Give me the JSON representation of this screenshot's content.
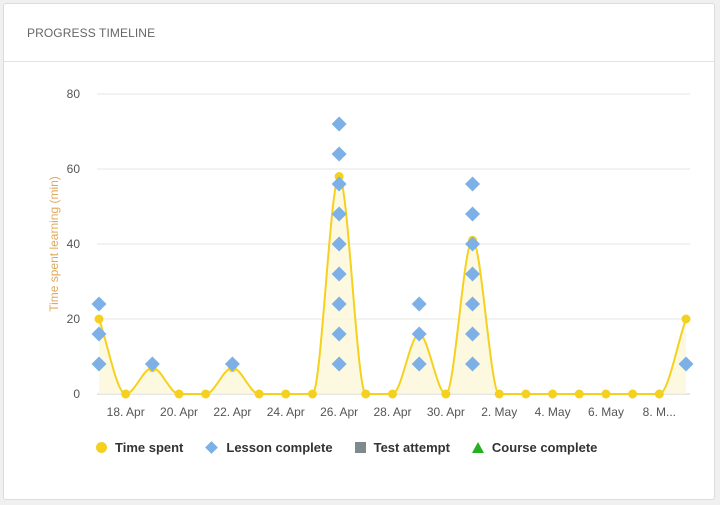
{
  "card": {
    "title": "PROGRESS TIMELINE"
  },
  "colors": {
    "time_spent": "#f5d11f",
    "lesson": "#7cb0e6",
    "test": "#7f8a8f",
    "course": "#25b021",
    "ylabel": "#e0a85a",
    "grid": "#e6e6e6"
  },
  "chart_data": {
    "type": "line",
    "title": "",
    "ylabel": "Time spent learning (min)",
    "xlabel": "",
    "ylim": [
      0,
      80
    ],
    "yticks": [
      0,
      20,
      40,
      60,
      80
    ],
    "x": [
      "17. Apr",
      "18. Apr",
      "19. Apr",
      "20. Apr",
      "21. Apr",
      "22. Apr",
      "23. Apr",
      "24. Apr",
      "25. Apr",
      "26. Apr",
      "27. Apr",
      "28. Apr",
      "29. Apr",
      "30. Apr",
      "1. May",
      "2. May",
      "3. May",
      "4. May",
      "5. May",
      "6. May",
      "7. May",
      "8. May",
      "9. May"
    ],
    "xtick_labels": [
      "18. Apr",
      "20. Apr",
      "22. Apr",
      "24. Apr",
      "26. Apr",
      "28. Apr",
      "30. Apr",
      "2. May",
      "4. May",
      "6. May",
      "8. M..."
    ],
    "series": [
      {
        "name": "Time spent",
        "marker": "circle",
        "values": [
          20,
          0,
          7,
          0,
          0,
          7,
          0,
          0,
          0,
          58,
          0,
          0,
          16,
          0,
          41,
          0,
          0,
          0,
          0,
          0,
          0,
          0,
          20
        ]
      },
      {
        "name": "Lesson complete",
        "marker": "diamond",
        "points": [
          [
            "17. Apr",
            8
          ],
          [
            "17. Apr",
            16
          ],
          [
            "17. Apr",
            24
          ],
          [
            "19. Apr",
            8
          ],
          [
            "22. Apr",
            8
          ],
          [
            "26. Apr",
            8
          ],
          [
            "26. Apr",
            16
          ],
          [
            "26. Apr",
            24
          ],
          [
            "26. Apr",
            32
          ],
          [
            "26. Apr",
            40
          ],
          [
            "26. Apr",
            48
          ],
          [
            "26. Apr",
            56
          ],
          [
            "26. Apr",
            64
          ],
          [
            "26. Apr",
            72
          ],
          [
            "29. Apr",
            8
          ],
          [
            "29. Apr",
            16
          ],
          [
            "29. Apr",
            24
          ],
          [
            "1. May",
            8
          ],
          [
            "1. May",
            16
          ],
          [
            "1. May",
            24
          ],
          [
            "1. May",
            32
          ],
          [
            "1. May",
            40
          ],
          [
            "1. May",
            48
          ],
          [
            "1. May",
            56
          ],
          [
            "9. May",
            8
          ]
        ]
      },
      {
        "name": "Test attempt",
        "marker": "square",
        "points": []
      },
      {
        "name": "Course complete",
        "marker": "triangle",
        "points": []
      }
    ],
    "legend": "bottom",
    "grid": true
  }
}
